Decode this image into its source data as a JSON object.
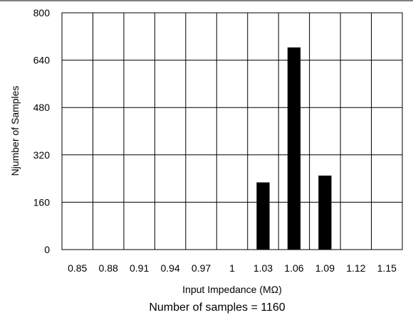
{
  "chart_data": {
    "type": "bar",
    "categories": [
      "0.85",
      "0.88",
      "0.91",
      "0.94",
      "0.97",
      "1",
      "1.03",
      "1.06",
      "1.09",
      "1.12",
      "1.15"
    ],
    "values": [
      0,
      0,
      0,
      0,
      0,
      0,
      227,
      683,
      250,
      0,
      0
    ],
    "title": "",
    "xlabel": "Input Impedance (MΩ)",
    "ylabel": "Njumber of Samples",
    "ylim": [
      0,
      800
    ],
    "yticks": [
      "0",
      "160",
      "320",
      "480",
      "640",
      "800"
    ],
    "grid": true,
    "legend": "none",
    "bar_color": "#000000",
    "footnote": "Number of samples = 1160"
  }
}
